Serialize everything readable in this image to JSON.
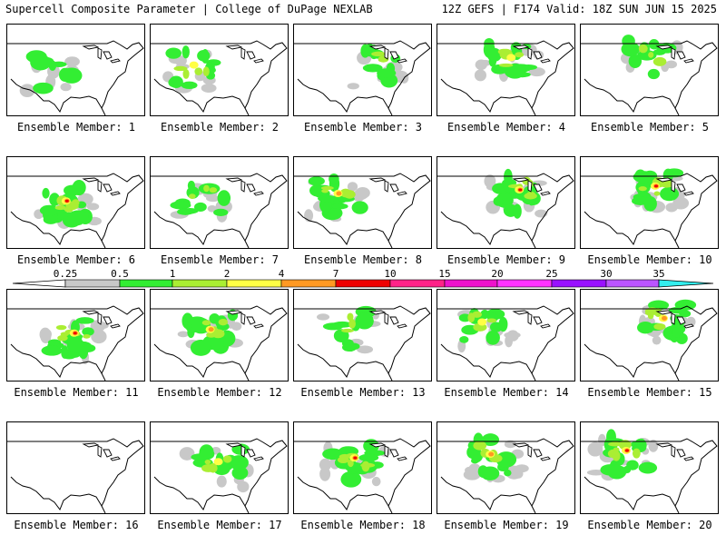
{
  "header": {
    "left": "Supercell Composite Parameter | College of DuPage NEXLAB",
    "right": "12Z GEFS | F174 Valid: 18Z SUN JUN 15 2025"
  },
  "legend": {
    "ticks": [
      "0.25",
      "0.5",
      "1",
      "2",
      "4",
      "7",
      "10",
      "15",
      "20",
      "25",
      "30",
      "35"
    ],
    "colors": [
      "#c8c8c8",
      "#33ee33",
      "#aaee33",
      "#ffff44",
      "#ff9922",
      "#ee0000",
      "#ff2288",
      "#ee11cc",
      "#ff33ff",
      "#9911ff",
      "#bb55ff",
      "#33eeee"
    ]
  },
  "palette": {
    "c1": "#c8c8c8",
    "c2": "#33ee33",
    "c3": "#aaee33",
    "c4": "#ffff44",
    "c5": "#ff9922",
    "c6": "#ee0000"
  },
  "members": [
    {
      "label": "Ensemble Member: 1",
      "strength": 2
    },
    {
      "label": "Ensemble Member: 2",
      "strength": 4
    },
    {
      "label": "Ensemble Member: 3",
      "strength": 3
    },
    {
      "label": "Ensemble Member: 4",
      "strength": 4
    },
    {
      "label": "Ensemble Member: 5",
      "strength": 3
    },
    {
      "label": "Ensemble Member: 6",
      "strength": 6
    },
    {
      "label": "Ensemble Member: 7",
      "strength": 3
    },
    {
      "label": "Ensemble Member: 8",
      "strength": 5
    },
    {
      "label": "Ensemble Member: 9",
      "strength": 6
    },
    {
      "label": "Ensemble Member: 10",
      "strength": 6
    },
    {
      "label": "Ensemble Member: 11",
      "strength": 6
    },
    {
      "label": "Ensemble Member: 12",
      "strength": 5
    },
    {
      "label": "Ensemble Member: 13",
      "strength": 3
    },
    {
      "label": "Ensemble Member: 14",
      "strength": 4
    },
    {
      "label": "Ensemble Member: 15",
      "strength": 5
    },
    {
      "label": "Ensemble Member: 16",
      "strength": 0
    },
    {
      "label": "Ensemble Member: 17",
      "strength": 4
    },
    {
      "label": "Ensemble Member: 18",
      "strength": 6
    },
    {
      "label": "Ensemble Member: 19",
      "strength": 5
    },
    {
      "label": "Ensemble Member: 20",
      "strength": 6
    }
  ]
}
